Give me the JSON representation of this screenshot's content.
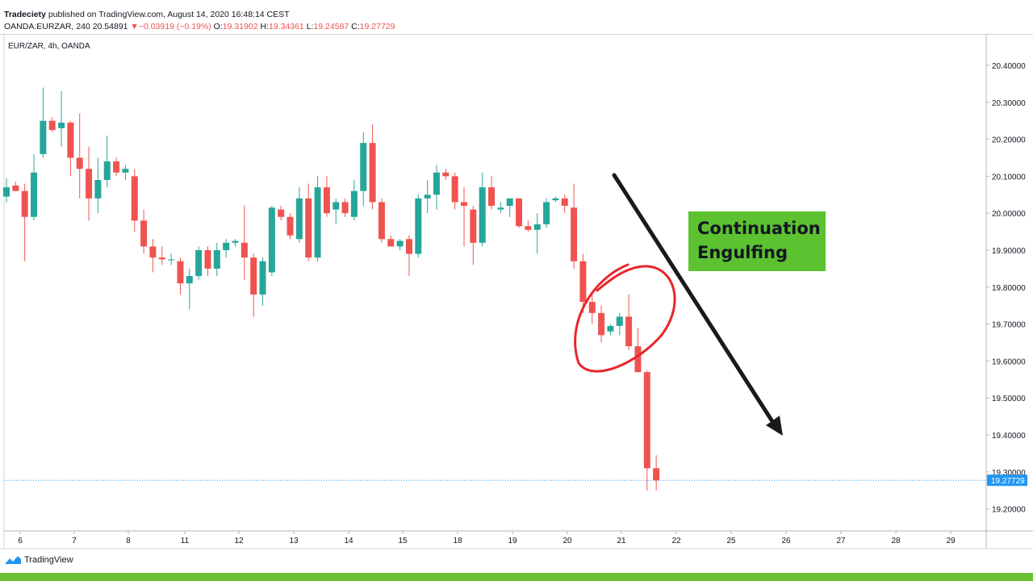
{
  "header": {
    "publisher": "Tradeciety",
    "published_text": "published on TradingView.com, August 14, 2020 16:48:14 CEST",
    "symbol": "OANDA:EURZAR, 240",
    "last": "20.54891",
    "change_arrow": "▼",
    "change": "−0.03919 (−0.19%)",
    "o_label": "O:",
    "o_value": "19.31902",
    "h_label": "H:",
    "h_value": "19.34361",
    "l_label": "L:",
    "l_value": "19.24587",
    "c_label": "C:",
    "c_value": "19.27729"
  },
  "legend_label": "EUR/ZAR, 4h, OANDA",
  "annotation": {
    "text": "Continuation\nEngulfing"
  },
  "footer": {
    "logo_text": "TradingView"
  },
  "colors": {
    "up": "#26a69a",
    "down": "#ef5350",
    "price_line": "#2196f3",
    "annotation_bg": "#5cc230",
    "circle": "#e8262a",
    "arrow": "#1a1a1a",
    "strip": "#6abf32"
  },
  "chart_data": {
    "type": "candlestick",
    "ylim": [
      19.15,
      20.48
    ],
    "y_ticks": [
      "20.40000",
      "20.30000",
      "20.20000",
      "20.10000",
      "20.00000",
      "19.90000",
      "19.80000",
      "19.70000",
      "19.60000",
      "19.50000",
      "19.40000",
      "19.30000",
      "19.20000"
    ],
    "x_ticks": [
      "6",
      "7",
      "8",
      "11",
      "12",
      "13",
      "14",
      "15",
      "18",
      "19",
      "20",
      "21",
      "22",
      "25",
      "26",
      "27",
      "28",
      "29"
    ],
    "last_price_label": "19.27729",
    "last_price": 19.27729,
    "candles": [
      {
        "o": 20.045,
        "h": 20.095,
        "l": 20.03,
        "c": 20.07
      },
      {
        "o": 20.075,
        "h": 20.085,
        "l": 20.06,
        "c": 20.06
      },
      {
        "o": 20.06,
        "h": 20.08,
        "l": 19.87,
        "c": 19.99
      },
      {
        "o": 19.99,
        "h": 20.16,
        "l": 19.98,
        "c": 20.11
      },
      {
        "o": 20.16,
        "h": 20.34,
        "l": 20.15,
        "c": 20.25
      },
      {
        "o": 20.25,
        "h": 20.26,
        "l": 20.22,
        "c": 20.225
      },
      {
        "o": 20.23,
        "h": 20.33,
        "l": 20.18,
        "c": 20.245
      },
      {
        "o": 20.245,
        "h": 20.25,
        "l": 20.1,
        "c": 20.15
      },
      {
        "o": 20.15,
        "h": 20.27,
        "l": 20.04,
        "c": 20.12
      },
      {
        "o": 20.12,
        "h": 20.18,
        "l": 19.98,
        "c": 20.04
      },
      {
        "o": 20.04,
        "h": 20.15,
        "l": 20.0,
        "c": 20.09
      },
      {
        "o": 20.09,
        "h": 20.21,
        "l": 20.07,
        "c": 20.14
      },
      {
        "o": 20.14,
        "h": 20.15,
        "l": 20.1,
        "c": 20.11
      },
      {
        "o": 20.11,
        "h": 20.13,
        "l": 20.09,
        "c": 20.12
      },
      {
        "o": 20.1,
        "h": 20.12,
        "l": 19.95,
        "c": 19.98
      },
      {
        "o": 19.98,
        "h": 20.01,
        "l": 19.89,
        "c": 19.91
      },
      {
        "o": 19.91,
        "h": 19.93,
        "l": 19.84,
        "c": 19.88
      },
      {
        "o": 19.88,
        "h": 19.91,
        "l": 19.86,
        "c": 19.875
      },
      {
        "o": 19.875,
        "h": 19.89,
        "l": 19.86,
        "c": 19.875
      },
      {
        "o": 19.87,
        "h": 19.88,
        "l": 19.78,
        "c": 19.81
      },
      {
        "o": 19.81,
        "h": 19.85,
        "l": 19.74,
        "c": 19.83
      },
      {
        "o": 19.83,
        "h": 19.91,
        "l": 19.82,
        "c": 19.9
      },
      {
        "o": 19.9,
        "h": 19.91,
        "l": 19.83,
        "c": 19.85
      },
      {
        "o": 19.85,
        "h": 19.92,
        "l": 19.83,
        "c": 19.9
      },
      {
        "o": 19.9,
        "h": 19.93,
        "l": 19.88,
        "c": 19.92
      },
      {
        "o": 19.92,
        "h": 19.93,
        "l": 19.91,
        "c": 19.925
      },
      {
        "o": 19.92,
        "h": 20.02,
        "l": 19.82,
        "c": 19.88
      },
      {
        "o": 19.88,
        "h": 19.89,
        "l": 19.72,
        "c": 19.78
      },
      {
        "o": 19.78,
        "h": 19.88,
        "l": 19.75,
        "c": 19.87
      },
      {
        "o": 19.84,
        "h": 20.02,
        "l": 19.83,
        "c": 20.015
      },
      {
        "o": 20.01,
        "h": 20.02,
        "l": 19.98,
        "c": 19.99
      },
      {
        "o": 19.99,
        "h": 20.0,
        "l": 19.93,
        "c": 19.94
      },
      {
        "o": 19.93,
        "h": 20.07,
        "l": 19.92,
        "c": 20.04
      },
      {
        "o": 20.04,
        "h": 20.08,
        "l": 19.87,
        "c": 19.88
      },
      {
        "o": 19.88,
        "h": 20.1,
        "l": 19.87,
        "c": 20.07
      },
      {
        "o": 20.07,
        "h": 20.1,
        "l": 19.99,
        "c": 20.0
      },
      {
        "o": 20.01,
        "h": 20.04,
        "l": 19.97,
        "c": 20.03
      },
      {
        "o": 20.03,
        "h": 20.04,
        "l": 19.99,
        "c": 20.0
      },
      {
        "o": 19.99,
        "h": 20.09,
        "l": 19.98,
        "c": 20.06
      },
      {
        "o": 20.06,
        "h": 20.22,
        "l": 20.02,
        "c": 20.19
      },
      {
        "o": 20.19,
        "h": 20.24,
        "l": 20.01,
        "c": 20.03
      },
      {
        "o": 20.03,
        "h": 20.04,
        "l": 19.92,
        "c": 19.93
      },
      {
        "o": 19.93,
        "h": 19.94,
        "l": 19.91,
        "c": 19.91
      },
      {
        "o": 19.91,
        "h": 19.93,
        "l": 19.9,
        "c": 19.925
      },
      {
        "o": 19.93,
        "h": 19.94,
        "l": 19.83,
        "c": 19.89
      },
      {
        "o": 19.89,
        "h": 20.05,
        "l": 19.88,
        "c": 20.04
      },
      {
        "o": 20.04,
        "h": 20.09,
        "l": 20.0,
        "c": 20.05
      },
      {
        "o": 20.05,
        "h": 20.13,
        "l": 20.01,
        "c": 20.11
      },
      {
        "o": 20.11,
        "h": 20.12,
        "l": 20.09,
        "c": 20.1
      },
      {
        "o": 20.1,
        "h": 20.11,
        "l": 20.01,
        "c": 20.03
      },
      {
        "o": 20.03,
        "h": 20.07,
        "l": 19.91,
        "c": 20.02
      },
      {
        "o": 20.01,
        "h": 20.02,
        "l": 19.86,
        "c": 19.92
      },
      {
        "o": 19.92,
        "h": 20.11,
        "l": 19.91,
        "c": 20.07
      },
      {
        "o": 20.07,
        "h": 20.1,
        "l": 20.01,
        "c": 20.02
      },
      {
        "o": 20.01,
        "h": 20.03,
        "l": 20.0,
        "c": 20.015
      },
      {
        "o": 20.02,
        "h": 20.04,
        "l": 19.99,
        "c": 20.04
      },
      {
        "o": 20.04,
        "h": 20.04,
        "l": 19.96,
        "c": 19.965
      },
      {
        "o": 19.965,
        "h": 19.98,
        "l": 19.95,
        "c": 19.955
      },
      {
        "o": 19.955,
        "h": 20.0,
        "l": 19.89,
        "c": 19.97
      },
      {
        "o": 19.97,
        "h": 20.04,
        "l": 19.96,
        "c": 20.03
      },
      {
        "o": 20.035,
        "h": 20.045,
        "l": 20.03,
        "c": 20.04
      },
      {
        "o": 20.04,
        "h": 20.05,
        "l": 20.0,
        "c": 20.02
      },
      {
        "o": 20.015,
        "h": 20.08,
        "l": 19.85,
        "c": 19.87
      },
      {
        "o": 19.87,
        "h": 19.89,
        "l": 19.73,
        "c": 19.76
      },
      {
        "o": 19.76,
        "h": 19.78,
        "l": 19.7,
        "c": 19.73
      },
      {
        "o": 19.73,
        "h": 19.75,
        "l": 19.65,
        "c": 19.67
      },
      {
        "o": 19.68,
        "h": 19.7,
        "l": 19.67,
        "c": 19.695
      },
      {
        "o": 19.695,
        "h": 19.73,
        "l": 19.67,
        "c": 19.72
      },
      {
        "o": 19.72,
        "h": 19.78,
        "l": 19.63,
        "c": 19.64
      },
      {
        "o": 19.64,
        "h": 19.69,
        "l": 19.57,
        "c": 19.57
      },
      {
        "o": 19.57,
        "h": 19.575,
        "l": 19.25,
        "c": 19.31
      },
      {
        "o": 19.31,
        "h": 19.345,
        "l": 19.25,
        "c": 19.277
      }
    ]
  }
}
